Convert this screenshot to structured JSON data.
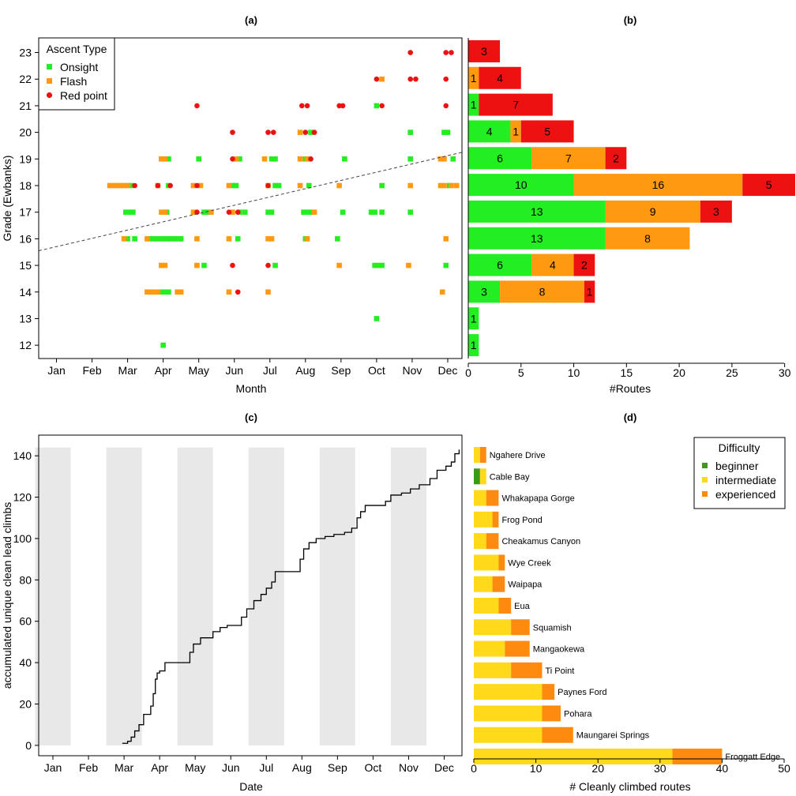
{
  "colors": {
    "onsight": "#22ee22",
    "flash": "#ff9a10",
    "redpoint": "#ee1111",
    "beginner": "#3a9a1a",
    "intermediate": "#ffd91a",
    "experienced": "#ff8a10",
    "shade": "#e8e8e8",
    "axis": "#000000",
    "trend": "#444444"
  },
  "chart_data": [
    {
      "panel": "(a)",
      "type": "scatter",
      "title": "(a)",
      "xlabel": "Month",
      "ylabel": "Grade (Ewbanks)",
      "x_ticks": [
        "Jan",
        "Feb",
        "Mar",
        "Apr",
        "May",
        "Jun",
        "Jul",
        "Aug",
        "Sep",
        "Oct",
        "Nov",
        "Dec"
      ],
      "y_ticks": [
        12,
        13,
        14,
        15,
        16,
        17,
        18,
        19,
        20,
        21,
        22,
        23
      ],
      "xlim": [
        0.5,
        12.4
      ],
      "ylim": [
        11.5,
        23.55
      ],
      "legend_title": "Ascent Type",
      "legend_position": "top-left",
      "trend_line": {
        "start": [
          0.5,
          15.55
        ],
        "end": [
          12.4,
          19.25
        ],
        "style": "dashed"
      },
      "series": [
        {
          "name": "Onsight",
          "marker": "square",
          "points": [
            [
              3.1,
              18
            ],
            [
              2.95,
              17
            ],
            [
              3.05,
              17
            ],
            [
              3.15,
              17
            ],
            [
              3.0,
              16
            ],
            [
              3.2,
              16
            ],
            [
              3.6,
              16
            ],
            [
              3.7,
              16
            ],
            [
              3.8,
              16
            ],
            [
              3.9,
              16
            ],
            [
              4.0,
              16
            ],
            [
              4.1,
              16
            ],
            [
              4.2,
              16
            ],
            [
              4.3,
              16
            ],
            [
              4.4,
              16
            ],
            [
              4.5,
              16
            ],
            [
              3.95,
              14
            ],
            [
              4.05,
              14
            ],
            [
              4.15,
              14
            ],
            [
              4.15,
              18
            ],
            [
              4.0,
              12
            ],
            [
              4.1,
              17
            ],
            [
              4.15,
              19
            ],
            [
              5.0,
              19
            ],
            [
              5.15,
              15
            ],
            [
              5.15,
              17
            ],
            [
              5.25,
              17
            ],
            [
              5.95,
              18
            ],
            [
              6.05,
              18
            ],
            [
              6.1,
              16
            ],
            [
              6.15,
              17
            ],
            [
              6.15,
              19
            ],
            [
              6.3,
              17
            ],
            [
              6.95,
              17
            ],
            [
              7.05,
              17
            ],
            [
              7.05,
              19
            ],
            [
              7.15,
              19
            ],
            [
              7.15,
              18
            ],
            [
              7.25,
              18
            ],
            [
              7.15,
              15
            ],
            [
              7.95,
              17
            ],
            [
              8.05,
              17
            ],
            [
              8.15,
              17
            ],
            [
              8.0,
              16
            ],
            [
              8.15,
              20
            ],
            [
              8.0,
              19
            ],
            [
              8.1,
              18
            ],
            [
              8.9,
              16
            ],
            [
              9.05,
              17
            ],
            [
              9.1,
              19
            ],
            [
              9.85,
              17
            ],
            [
              9.95,
              17
            ],
            [
              9.95,
              15
            ],
            [
              10.05,
              15
            ],
            [
              10.15,
              15
            ],
            [
              10.0,
              13
            ],
            [
              10.0,
              21
            ],
            [
              10.15,
              17
            ],
            [
              10.15,
              18
            ],
            [
              10.95,
              20
            ],
            [
              10.95,
              19
            ],
            [
              10.95,
              17
            ],
            [
              11.9,
              20
            ],
            [
              12.0,
              20
            ],
            [
              12.15,
              19
            ],
            [
              12.05,
              18
            ],
            [
              11.95,
              15
            ]
          ]
        },
        {
          "name": "Flash",
          "marker": "square",
          "points": [
            [
              2.5,
              18
            ],
            [
              2.6,
              18
            ],
            [
              2.7,
              18
            ],
            [
              2.8,
              18
            ],
            [
              2.9,
              18
            ],
            [
              3.0,
              18
            ],
            [
              2.9,
              16
            ],
            [
              3.55,
              16
            ],
            [
              3.85,
              18
            ],
            [
              3.55,
              14
            ],
            [
              3.65,
              14
            ],
            [
              3.75,
              14
            ],
            [
              3.85,
              14
            ],
            [
              4.4,
              14
            ],
            [
              4.5,
              14
            ],
            [
              3.95,
              19
            ],
            [
              4.05,
              19
            ],
            [
              3.95,
              17
            ],
            [
              4.05,
              17
            ],
            [
              3.95,
              15
            ],
            [
              4.05,
              15
            ],
            [
              4.85,
              18
            ],
            [
              5.05,
              18
            ],
            [
              4.85,
              17
            ],
            [
              5.35,
              17
            ],
            [
              4.95,
              16
            ],
            [
              4.95,
              15
            ],
            [
              5.85,
              18
            ],
            [
              5.85,
              16
            ],
            [
              5.85,
              14
            ],
            [
              5.95,
              17
            ],
            [
              6.05,
              19
            ],
            [
              6.85,
              19
            ],
            [
              6.95,
              18
            ],
            [
              6.95,
              16
            ],
            [
              7.05,
              16
            ],
            [
              6.95,
              14
            ],
            [
              7.85,
              20
            ],
            [
              7.85,
              19
            ],
            [
              7.85,
              18
            ],
            [
              8.05,
              19
            ],
            [
              8.25,
              17
            ],
            [
              8.05,
              16
            ],
            [
              8.95,
              18
            ],
            [
              8.95,
              15
            ],
            [
              10.15,
              22
            ],
            [
              10.95,
              18
            ],
            [
              10.9,
              15
            ],
            [
              11.8,
              19
            ],
            [
              11.9,
              19
            ],
            [
              11.8,
              18
            ],
            [
              11.9,
              18
            ],
            [
              12.1,
              18
            ],
            [
              12.25,
              18
            ],
            [
              11.95,
              16
            ],
            [
              11.85,
              14
            ]
          ]
        },
        {
          "name": "Red point",
          "marker": "circle",
          "points": [
            [
              3.2,
              18
            ],
            [
              3.85,
              18
            ],
            [
              4.2,
              18
            ],
            [
              4.95,
              21
            ],
            [
              4.95,
              18
            ],
            [
              4.95,
              17
            ],
            [
              5.95,
              20
            ],
            [
              5.95,
              19
            ],
            [
              5.85,
              17
            ],
            [
              6.1,
              17
            ],
            [
              6.1,
              14
            ],
            [
              5.95,
              15
            ],
            [
              6.95,
              20
            ],
            [
              7.1,
              20
            ],
            [
              6.95,
              18
            ],
            [
              6.95,
              15
            ],
            [
              7.9,
              21
            ],
            [
              8.05,
              21
            ],
            [
              8.0,
              20
            ],
            [
              8.25,
              20
            ],
            [
              8.15,
              19
            ],
            [
              8.95,
              21
            ],
            [
              9.05,
              21
            ],
            [
              10.0,
              22
            ],
            [
              10.15,
              21
            ],
            [
              10.95,
              23
            ],
            [
              10.95,
              22
            ],
            [
              11.1,
              22
            ],
            [
              11.95,
              23
            ],
            [
              12.1,
              23
            ],
            [
              11.95,
              22
            ],
            [
              11.95,
              21
            ]
          ]
        }
      ]
    },
    {
      "panel": "(b)",
      "type": "bar",
      "orientation": "horizontal",
      "stacked": true,
      "title": "(b)",
      "xlabel": "#Routes",
      "x_ticks": [
        0,
        5,
        10,
        15,
        20,
        25,
        30
      ],
      "xlim": [
        0,
        31
      ],
      "categories": [
        23,
        22,
        21,
        20,
        19,
        18,
        17,
        16,
        15,
        14,
        13,
        12
      ],
      "series": [
        {
          "name": "Onsight",
          "values": [
            0,
            0,
            1,
            4,
            6,
            10,
            13,
            13,
            6,
            3,
            1,
            1
          ]
        },
        {
          "name": "Flash",
          "values": [
            0,
            1,
            0,
            1,
            7,
            16,
            9,
            8,
            4,
            8,
            0,
            0
          ]
        },
        {
          "name": "Red point",
          "values": [
            3,
            4,
            7,
            5,
            2,
            5,
            3,
            0,
            2,
            1,
            0,
            0
          ]
        }
      ]
    },
    {
      "panel": "(c)",
      "type": "line",
      "step": true,
      "title": "(c)",
      "xlabel": "Date",
      "ylabel": "accumulated unique clean lead climbs",
      "x_ticks": [
        "Jan",
        "Feb",
        "Mar",
        "Apr",
        "May",
        "Jun",
        "Jul",
        "Aug",
        "Sep",
        "Oct",
        "Nov",
        "Dec"
      ],
      "y_ticks": [
        0,
        20,
        40,
        60,
        80,
        100,
        120,
        140
      ],
      "xlim": [
        0.6,
        12.5
      ],
      "ylim": [
        -5,
        150
      ],
      "shaded_months": [
        "Jan",
        "Mar",
        "May",
        "Jul",
        "Sep",
        "Nov"
      ],
      "x_unit": "month",
      "points": [
        [
          2.95,
          1
        ],
        [
          3.1,
          2
        ],
        [
          3.2,
          4
        ],
        [
          3.3,
          7
        ],
        [
          3.42,
          10
        ],
        [
          3.55,
          15
        ],
        [
          3.75,
          19
        ],
        [
          3.82,
          25
        ],
        [
          3.88,
          32
        ],
        [
          3.93,
          35
        ],
        [
          4.0,
          36
        ],
        [
          4.15,
          40
        ],
        [
          4.2,
          40
        ],
        [
          4.75,
          40
        ],
        [
          4.85,
          45
        ],
        [
          4.95,
          49
        ],
        [
          5.15,
          52
        ],
        [
          5.5,
          55
        ],
        [
          5.7,
          57
        ],
        [
          5.9,
          58
        ],
        [
          6.2,
          58
        ],
        [
          6.3,
          62
        ],
        [
          6.45,
          66
        ],
        [
          6.65,
          70
        ],
        [
          6.85,
          73
        ],
        [
          7.0,
          76
        ],
        [
          7.15,
          79
        ],
        [
          7.25,
          84
        ],
        [
          7.85,
          84
        ],
        [
          7.95,
          90
        ],
        [
          8.05,
          95
        ],
        [
          8.2,
          98
        ],
        [
          8.4,
          100
        ],
        [
          8.65,
          101
        ],
        [
          8.9,
          102
        ],
        [
          9.2,
          103
        ],
        [
          9.4,
          105
        ],
        [
          9.55,
          110
        ],
        [
          9.65,
          113
        ],
        [
          9.78,
          116
        ],
        [
          10.1,
          116
        ],
        [
          10.35,
          118
        ],
        [
          10.5,
          121
        ],
        [
          10.8,
          122
        ],
        [
          11.05,
          124
        ],
        [
          11.3,
          126
        ],
        [
          11.6,
          129
        ],
        [
          11.8,
          133
        ],
        [
          12.05,
          135
        ],
        [
          12.2,
          137
        ],
        [
          12.3,
          141
        ],
        [
          12.42,
          143
        ]
      ]
    },
    {
      "panel": "(d)",
      "type": "bar",
      "orientation": "horizontal",
      "stacked": true,
      "title": "(d)",
      "xlabel": "# Cleanly climbed routes",
      "x_ticks": [
        0,
        10,
        20,
        30,
        40,
        50
      ],
      "xlim": [
        0,
        50
      ],
      "legend_title": "Difficulty",
      "legend_position": "top-right",
      "categories": [
        "Ngahere Drive",
        "Cable Bay",
        "Whakapapa Gorge",
        "Frog Pond",
        "Cheakamus Canyon",
        "Wye Creek",
        "Waipapa",
        "Eua",
        "Squamish",
        "Mangaokewa",
        "Ti Point",
        "Paynes Ford",
        "Pohara",
        "Maungarei Springs",
        "Froggatt Edge"
      ],
      "series": [
        {
          "name": "beginner",
          "values": [
            0,
            1,
            0,
            0,
            0,
            0,
            0,
            0,
            0,
            0,
            0,
            0,
            0,
            0,
            0
          ]
        },
        {
          "name": "intermediate",
          "values": [
            1,
            1,
            2,
            3,
            2,
            4,
            3,
            4,
            6,
            5,
            6,
            11,
            11,
            11,
            32
          ]
        },
        {
          "name": "experienced",
          "values": [
            1,
            0,
            2,
            1,
            2,
            1,
            2,
            2,
            3,
            4,
            5,
            2,
            3,
            5,
            8
          ]
        }
      ]
    }
  ]
}
